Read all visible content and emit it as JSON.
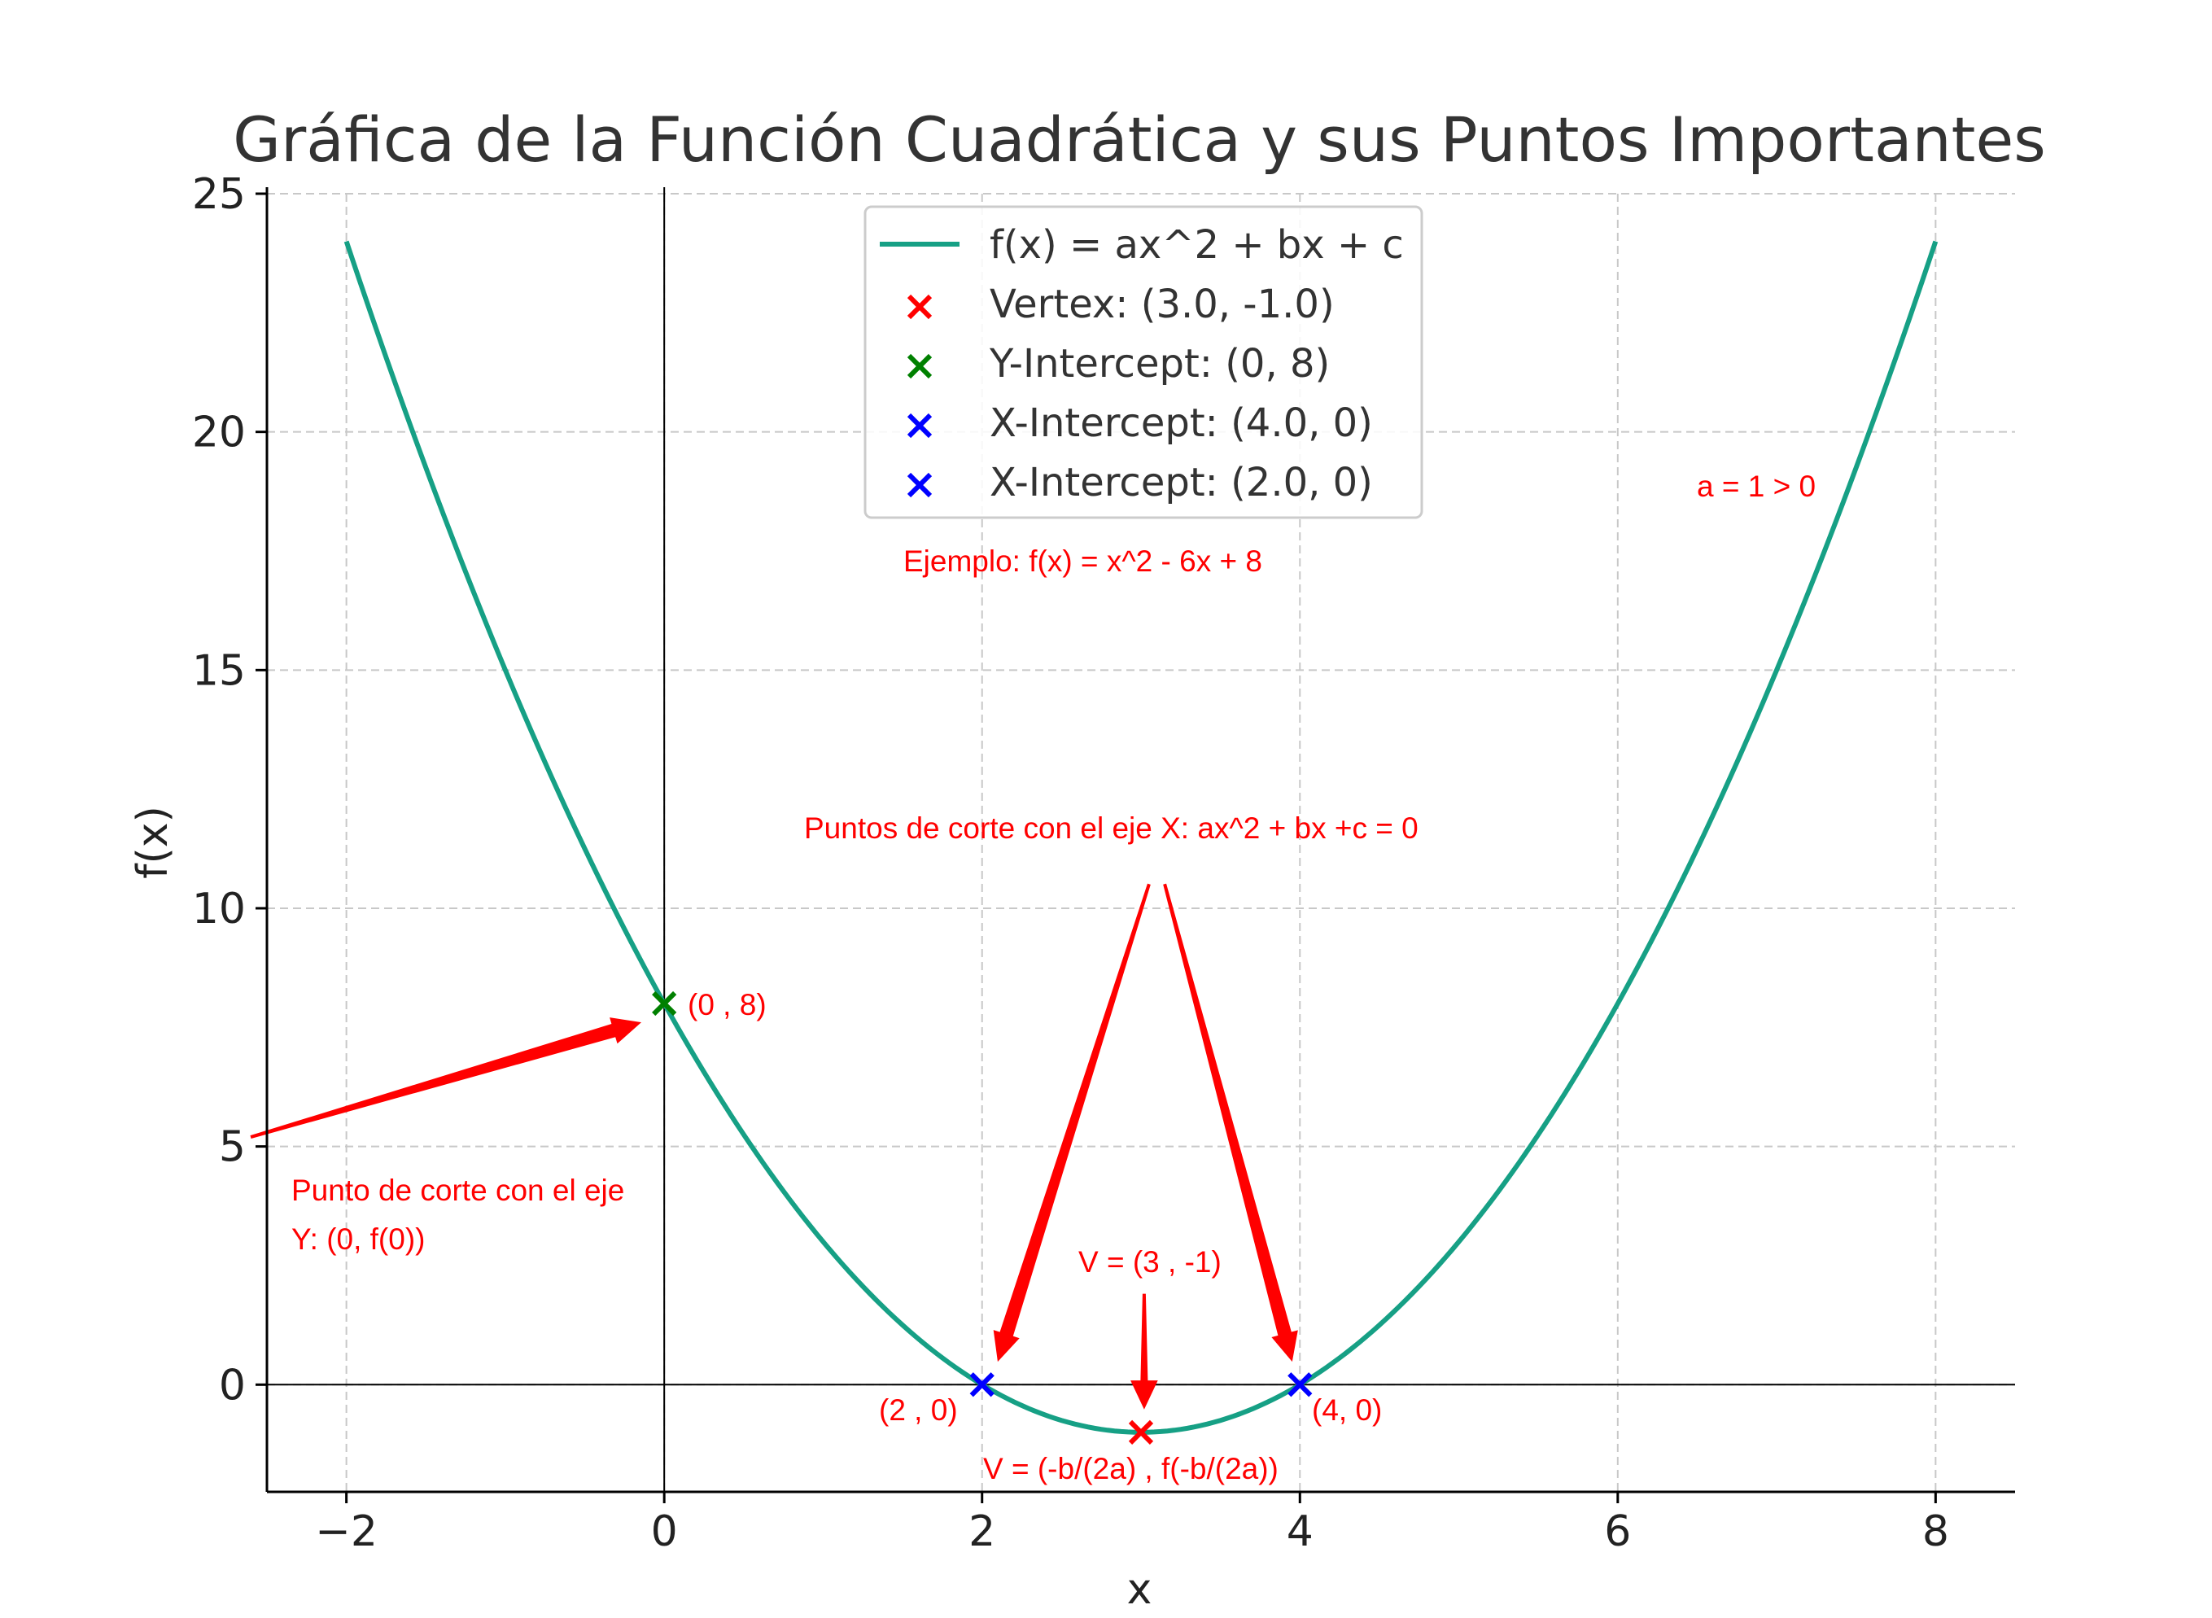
{
  "chart_data": {
    "type": "line",
    "title": "Gráfica de la Función Cuadrática y sus Puntos Importantes",
    "xlabel": "x",
    "ylabel": "f(x)",
    "xlim": [
      -2.5,
      8.5
    ],
    "ylim": [
      -2.25,
      25
    ],
    "grid": true,
    "xticks": [
      -2,
      0,
      2,
      4,
      6,
      8
    ],
    "xtick_labels": [
      "−2",
      "0",
      "2",
      "4",
      "6",
      "8"
    ],
    "yticks": [
      0,
      5,
      10,
      15,
      20,
      25
    ],
    "ytick_labels": [
      "0",
      "5",
      "10",
      "15",
      "20",
      "25"
    ],
    "legend_position": "top-center",
    "series": [
      {
        "name": "f(x) = ax^2 + bx + c",
        "kind": "line",
        "color": "#16a085",
        "function": {
          "a": 1,
          "b": -6,
          "c": 8
        },
        "x_range": [
          -2,
          8
        ]
      },
      {
        "name": "Vertex: (3.0, -1.0)",
        "kind": "marker",
        "marker": "x",
        "color": "#ff0000",
        "points": [
          [
            3,
            -1
          ]
        ]
      },
      {
        "name": "Y-Intercept: (0, 8)",
        "kind": "marker",
        "marker": "x",
        "color": "#008000",
        "points": [
          [
            0,
            8
          ]
        ]
      },
      {
        "name": "X-Intercept: (4.0, 0)",
        "kind": "marker",
        "marker": "x",
        "color": "#0000ff",
        "points": [
          [
            4,
            0
          ]
        ]
      },
      {
        "name": "X-Intercept: (2.0, 0)",
        "kind": "marker",
        "marker": "x",
        "color": "#0000ff",
        "points": [
          [
            2,
            0
          ]
        ]
      }
    ],
    "annotations": [
      {
        "text": "a = 1 > 0",
        "color": "#ff0000"
      },
      {
        "text": "Ejemplo: f(x) = x^2 - 6x + 8",
        "color": "#ff0000"
      },
      {
        "text": "Puntos de corte con el eje X: ax^2 + bx +c = 0",
        "color": "#ff0000"
      },
      {
        "text": "(0 , 8)",
        "color": "#ff0000"
      },
      {
        "text": "Punto de corte con el eje",
        "color": "#ff0000"
      },
      {
        "text": "Y: (0, f(0))",
        "color": "#ff0000"
      },
      {
        "text": "V = (3 , -1)",
        "color": "#ff0000"
      },
      {
        "text": "(2 , 0)",
        "color": "#ff0000"
      },
      {
        "text": "(4, 0)",
        "color": "#ff0000"
      },
      {
        "text": "V = (-b/(2a) , f(-b/(2a))",
        "color": "#ff0000"
      }
    ],
    "arrows": [
      {
        "from": [
          -2.6,
          5.2
        ],
        "to": [
          -0.15,
          7.6
        ],
        "color": "#ff0000"
      },
      {
        "from": [
          3.05,
          10.5
        ],
        "to": [
          2.1,
          0.5
        ],
        "color": "#ff0000"
      },
      {
        "from": [
          3.15,
          10.5
        ],
        "to": [
          3.95,
          0.5
        ],
        "color": "#ff0000"
      },
      {
        "from": [
          3.02,
          1.9
        ],
        "to": [
          3.02,
          -0.5
        ],
        "color": "#ff0000"
      }
    ]
  }
}
